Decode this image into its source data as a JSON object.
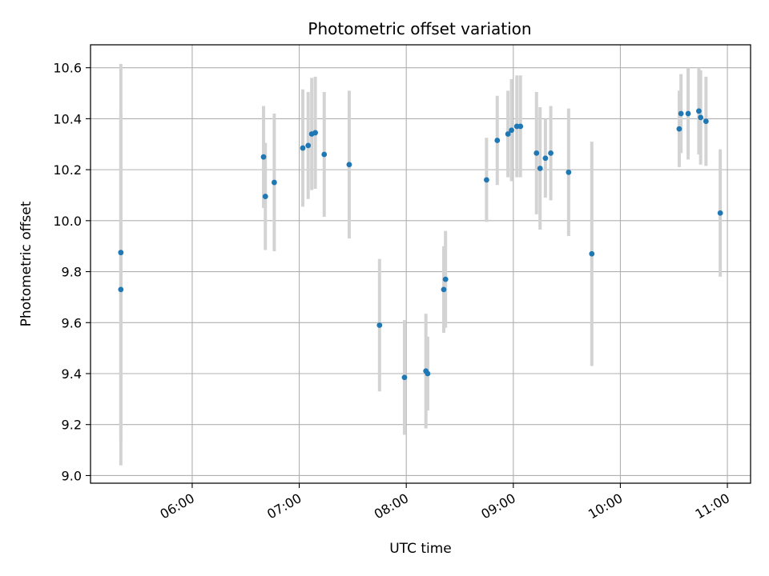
{
  "chart_data": {
    "type": "scatter",
    "title": "Photometric offset variation",
    "xlabel": "UTC time",
    "ylabel": "Photometric offset",
    "x_ticks": [
      "06:00",
      "07:00",
      "08:00",
      "09:00",
      "10:00",
      "11:00"
    ],
    "y_ticks": [
      "9.0",
      "9.2",
      "9.4",
      "9.6",
      "9.8",
      "10.0",
      "10.2",
      "10.4",
      "10.6"
    ],
    "xlim": [
      "05:03",
      "11:13"
    ],
    "ylim": [
      8.97,
      10.69
    ],
    "grid": true,
    "colors": {
      "point": "#1f77b4",
      "errorbar": "#d3d3d3",
      "grid": "#b0b0b0"
    },
    "series": [
      {
        "points": [
          {
            "x": "05:20",
            "y": 9.875,
            "err": 0.74
          },
          {
            "x": "05:20",
            "y": 9.73,
            "err": 0.69
          },
          {
            "x": "06:40",
            "y": 10.25,
            "err": 0.2
          },
          {
            "x": "06:41",
            "y": 10.095,
            "err": 0.21
          },
          {
            "x": "06:46",
            "y": 10.15,
            "err": 0.27
          },
          {
            "x": "07:02",
            "y": 10.285,
            "err": 0.23
          },
          {
            "x": "07:05",
            "y": 10.295,
            "err": 0.21
          },
          {
            "x": "07:07",
            "y": 10.34,
            "err": 0.22
          },
          {
            "x": "07:09",
            "y": 10.345,
            "err": 0.22
          },
          {
            "x": "07:14",
            "y": 10.26,
            "err": 0.245
          },
          {
            "x": "07:28",
            "y": 10.22,
            "err": 0.29
          },
          {
            "x": "07:45",
            "y": 9.59,
            "err": 0.26
          },
          {
            "x": "07:59",
            "y": 9.385,
            "err": 0.225
          },
          {
            "x": "08:11",
            "y": 9.41,
            "err": 0.225
          },
          {
            "x": "08:12",
            "y": 9.4,
            "err": 0.145
          },
          {
            "x": "08:21",
            "y": 9.73,
            "err": 0.17
          },
          {
            "x": "08:22",
            "y": 9.77,
            "err": 0.19
          },
          {
            "x": "08:45",
            "y": 10.16,
            "err": 0.165
          },
          {
            "x": "08:51",
            "y": 10.315,
            "err": 0.175
          },
          {
            "x": "08:57",
            "y": 10.34,
            "err": 0.17
          },
          {
            "x": "08:59",
            "y": 10.355,
            "err": 0.2
          },
          {
            "x": "09:02",
            "y": 10.37,
            "err": 0.2
          },
          {
            "x": "09:04",
            "y": 10.37,
            "err": 0.2
          },
          {
            "x": "09:13",
            "y": 10.265,
            "err": 0.24
          },
          {
            "x": "09:15",
            "y": 10.205,
            "err": 0.24
          },
          {
            "x": "09:18",
            "y": 10.245,
            "err": 0.155
          },
          {
            "x": "09:21",
            "y": 10.265,
            "err": 0.185
          },
          {
            "x": "09:31",
            "y": 10.19,
            "err": 0.25
          },
          {
            "x": "09:44",
            "y": 9.87,
            "err": 0.44
          },
          {
            "x": "10:33",
            "y": 10.36,
            "err": 0.15
          },
          {
            "x": "10:34",
            "y": 10.42,
            "err": 0.155
          },
          {
            "x": "10:38",
            "y": 10.42,
            "err": 0.18
          },
          {
            "x": "10:44",
            "y": 10.43,
            "err": 0.17
          },
          {
            "x": "10:45",
            "y": 10.405,
            "err": 0.185
          },
          {
            "x": "10:48",
            "y": 10.39,
            "err": 0.175
          },
          {
            "x": "10:56",
            "y": 10.03,
            "err": 0.25
          }
        ]
      }
    ]
  }
}
